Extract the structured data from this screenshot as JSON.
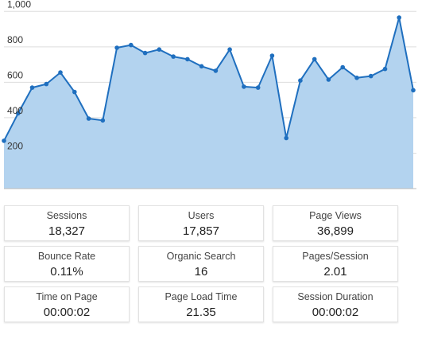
{
  "chart_data": {
    "type": "area",
    "y_ticks": [
      "1,000",
      "800",
      "600",
      "400",
      "200"
    ],
    "y_tick_values": [
      1000,
      800,
      600,
      400,
      200
    ],
    "ylim": [
      0,
      1100
    ],
    "grid": true,
    "colors": {
      "line": "#1f6fbf",
      "fill": "#b3d3ef",
      "grid": "#dddddd",
      "point": "#1f6fbf"
    },
    "values": [
      270,
      425,
      570,
      590,
      655,
      545,
      395,
      385,
      795,
      810,
      765,
      785,
      745,
      730,
      690,
      665,
      785,
      575,
      570,
      750,
      285,
      610,
      730,
      615,
      685,
      625,
      635,
      675,
      965,
      555
    ]
  },
  "stats": [
    {
      "label": "Sessions",
      "value": "18,327"
    },
    {
      "label": "Users",
      "value": "17,857"
    },
    {
      "label": "Page Views",
      "value": "36,899"
    },
    {
      "label": "Bounce Rate",
      "value": "0.11%"
    },
    {
      "label": "Organic Search",
      "value": "16"
    },
    {
      "label": "Pages/Session",
      "value": "2.01"
    },
    {
      "label": "Time on Page",
      "value": "00:00:02"
    },
    {
      "label": "Page Load Time",
      "value": "21.35"
    },
    {
      "label": "Session Duration",
      "value": "00:00:02"
    }
  ]
}
